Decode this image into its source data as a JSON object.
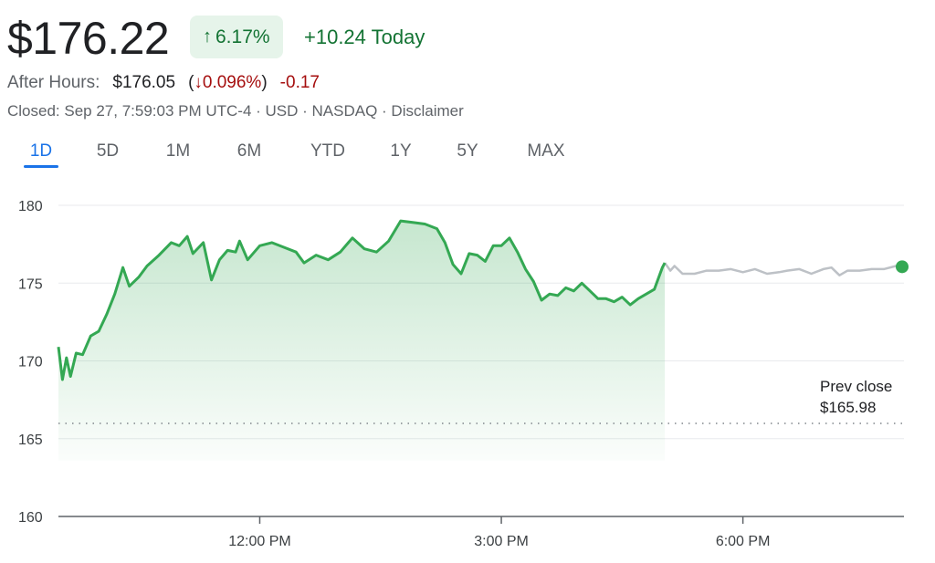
{
  "header": {
    "price": "$176.22",
    "change_pct": "6.17%",
    "change_pct_arrow": "↑",
    "change_today": "+10.24 Today",
    "after_hours_label": "After Hours:",
    "after_hours_price": "$176.05",
    "after_hours_pct": "0.096%",
    "after_hours_pct_arrow": "↓",
    "after_hours_change": "-0.17",
    "meta": "Closed: Sep 27, 7:59:03 PM UTC-4 · USD · NASDAQ · Disclaimer"
  },
  "tabs": [
    {
      "label": "1D",
      "active": true
    },
    {
      "label": "5D",
      "active": false
    },
    {
      "label": "1M",
      "active": false
    },
    {
      "label": "6M",
      "active": false
    },
    {
      "label": "YTD",
      "active": false
    },
    {
      "label": "1Y",
      "active": false
    },
    {
      "label": "5Y",
      "active": false
    },
    {
      "label": "MAX",
      "active": false
    }
  ],
  "colors": {
    "positive": "#137333",
    "negative": "#a50e0e",
    "line_regular": "#34a853",
    "line_after_hours": "#bdc1c6",
    "accent": "#1a73e8"
  },
  "chart_data": {
    "type": "line",
    "title": "",
    "xlabel": "",
    "ylabel": "",
    "ylim": [
      160,
      181
    ],
    "y_ticks": [
      180,
      175,
      170,
      165,
      160
    ],
    "x_ticks": [
      "12:00 PM",
      "3:00 PM",
      "6:00 PM"
    ],
    "x_tick_hours": [
      12,
      15,
      18
    ],
    "x_range_hours": [
      9.5,
      20.0
    ],
    "grid": true,
    "prev_close": {
      "label_line1": "Prev close",
      "label_line2": "$165.98",
      "value": 165.98
    },
    "series": [
      {
        "session": "regular",
        "points": [
          [
            9.5,
            170.9
          ],
          [
            9.55,
            168.8
          ],
          [
            9.6,
            170.2
          ],
          [
            9.65,
            169.0
          ],
          [
            9.72,
            170.5
          ],
          [
            9.8,
            170.4
          ],
          [
            9.9,
            171.6
          ],
          [
            10.0,
            171.9
          ],
          [
            10.1,
            173.0
          ],
          [
            10.2,
            174.3
          ],
          [
            10.3,
            176.0
          ],
          [
            10.38,
            174.8
          ],
          [
            10.5,
            175.4
          ],
          [
            10.6,
            176.1
          ],
          [
            10.75,
            176.8
          ],
          [
            10.9,
            177.6
          ],
          [
            11.0,
            177.4
          ],
          [
            11.1,
            178.0
          ],
          [
            11.17,
            176.9
          ],
          [
            11.3,
            177.6
          ],
          [
            11.4,
            175.2
          ],
          [
            11.5,
            176.5
          ],
          [
            11.6,
            177.1
          ],
          [
            11.7,
            177.0
          ],
          [
            11.75,
            177.7
          ],
          [
            11.85,
            176.5
          ],
          [
            12.0,
            177.4
          ],
          [
            12.15,
            177.6
          ],
          [
            12.3,
            177.3
          ],
          [
            12.45,
            177.0
          ],
          [
            12.55,
            176.3
          ],
          [
            12.7,
            176.8
          ],
          [
            12.85,
            176.5
          ],
          [
            13.0,
            177.0
          ],
          [
            13.15,
            177.9
          ],
          [
            13.3,
            177.2
          ],
          [
            13.45,
            177.0
          ],
          [
            13.6,
            177.7
          ],
          [
            13.75,
            179.0
          ],
          [
            13.9,
            178.9
          ],
          [
            14.05,
            178.8
          ],
          [
            14.2,
            178.5
          ],
          [
            14.3,
            177.6
          ],
          [
            14.4,
            176.2
          ],
          [
            14.5,
            175.6
          ],
          [
            14.6,
            176.9
          ],
          [
            14.7,
            176.8
          ],
          [
            14.8,
            176.4
          ],
          [
            14.9,
            177.4
          ],
          [
            15.0,
            177.4
          ],
          [
            15.1,
            177.9
          ],
          [
            15.2,
            177.0
          ],
          [
            15.3,
            175.9
          ],
          [
            15.4,
            175.1
          ],
          [
            15.5,
            173.9
          ],
          [
            15.6,
            174.3
          ],
          [
            15.7,
            174.2
          ],
          [
            15.8,
            174.7
          ],
          [
            15.9,
            174.5
          ],
          [
            16.0,
            175.0
          ],
          [
            16.1,
            174.5
          ],
          [
            16.2,
            174.0
          ],
          [
            16.3,
            174.0
          ],
          [
            16.4,
            173.8
          ],
          [
            16.5,
            174.1
          ],
          [
            16.6,
            173.6
          ],
          [
            16.7,
            174.0
          ],
          [
            16.8,
            174.3
          ],
          [
            16.9,
            174.6
          ],
          [
            17.0,
            176.0
          ],
          [
            17.03,
            176.3
          ]
        ]
      },
      {
        "session": "after_hours",
        "points": [
          [
            17.03,
            176.3
          ],
          [
            17.1,
            175.8
          ],
          [
            17.15,
            176.1
          ],
          [
            17.25,
            175.6
          ],
          [
            17.4,
            175.6
          ],
          [
            17.55,
            175.8
          ],
          [
            17.7,
            175.8
          ],
          [
            17.85,
            175.9
          ],
          [
            18.0,
            175.7
          ],
          [
            18.15,
            175.9
          ],
          [
            18.3,
            175.6
          ],
          [
            18.45,
            175.7
          ],
          [
            18.55,
            175.8
          ],
          [
            18.7,
            175.9
          ],
          [
            18.85,
            175.6
          ],
          [
            19.0,
            175.9
          ],
          [
            19.1,
            176.0
          ],
          [
            19.2,
            175.5
          ],
          [
            19.3,
            175.8
          ],
          [
            19.45,
            175.8
          ],
          [
            19.6,
            175.9
          ],
          [
            19.75,
            175.9
          ],
          [
            19.9,
            176.1
          ],
          [
            20.0,
            176.05
          ]
        ]
      }
    ],
    "end_marker": {
      "value": 176.05
    }
  }
}
